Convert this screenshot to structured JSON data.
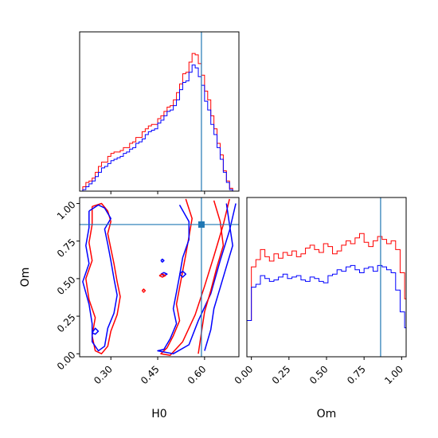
{
  "colors": {
    "series_a": "#ff0000",
    "series_b": "#0000ff",
    "truth": "#1f77b4",
    "frame": "#000000"
  },
  "chart_data": [
    {
      "type": "histogram",
      "panel": "H0 marginal",
      "x": [
        0.2,
        0.21,
        0.22,
        0.23,
        0.24,
        0.25,
        0.26,
        0.27,
        0.28,
        0.29,
        0.3,
        0.31,
        0.32,
        0.33,
        0.34,
        0.35,
        0.36,
        0.37,
        0.38,
        0.39,
        0.4,
        0.41,
        0.42,
        0.43,
        0.44,
        0.45,
        0.46,
        0.47,
        0.48,
        0.49,
        0.5,
        0.51,
        0.52,
        0.53,
        0.54,
        0.55,
        0.56,
        0.57,
        0.58,
        0.59,
        0.6,
        0.61,
        0.62,
        0.63,
        0.64,
        0.65,
        0.66,
        0.67,
        0.68,
        0.69,
        0.7,
        0.71
      ],
      "series": [
        {
          "values": [
            0,
            0.03,
            0.06,
            0.07,
            0.09,
            0.13,
            0.17,
            0.2,
            0.2,
            0.24,
            0.26,
            0.27,
            0.27,
            0.28,
            0.3,
            0.3,
            0.33,
            0.34,
            0.37,
            0.37,
            0.41,
            0.43,
            0.45,
            0.46,
            0.46,
            0.5,
            0.52,
            0.55,
            0.58,
            0.59,
            0.63,
            0.68,
            0.74,
            0.81,
            0.82,
            0.89,
            0.95,
            0.94,
            0.88,
            0.8,
            0.69,
            0.63,
            0.52,
            0.43,
            0.33,
            0.25,
            0.14,
            0.07,
            0.02,
            0,
            0,
            0
          ]
        },
        {
          "values": [
            0,
            0.01,
            0.03,
            0.05,
            0.07,
            0.1,
            0.13,
            0.16,
            0.17,
            0.19,
            0.21,
            0.22,
            0.23,
            0.24,
            0.26,
            0.27,
            0.29,
            0.3,
            0.33,
            0.34,
            0.36,
            0.39,
            0.41,
            0.42,
            0.43,
            0.47,
            0.49,
            0.52,
            0.55,
            0.56,
            0.59,
            0.63,
            0.7,
            0.75,
            0.76,
            0.82,
            0.87,
            0.85,
            0.79,
            0.73,
            0.62,
            0.56,
            0.46,
            0.39,
            0.3,
            0.22,
            0.13,
            0.06,
            0.01,
            0,
            0,
            0
          ]
        }
      ],
      "xlim": [
        0.2,
        0.71
      ],
      "ylim": [
        0,
        1
      ],
      "truth": 0.59
    },
    {
      "type": "histogram",
      "panel": "Om marginal",
      "x": [
        -0.03,
        0.0,
        0.03,
        0.06,
        0.09,
        0.12,
        0.15,
        0.18,
        0.21,
        0.24,
        0.27,
        0.3,
        0.33,
        0.36,
        0.39,
        0.42,
        0.45,
        0.48,
        0.51,
        0.54,
        0.57,
        0.6,
        0.63,
        0.66,
        0.69,
        0.72,
        0.75,
        0.78,
        0.81,
        0.84,
        0.87,
        0.9,
        0.93,
        0.96,
        0.99,
        1.02,
        1.05
      ],
      "series": [
        {
          "values": [
            0.25,
            0.62,
            0.67,
            0.74,
            0.69,
            0.66,
            0.71,
            0.68,
            0.72,
            0.7,
            0.73,
            0.69,
            0.71,
            0.75,
            0.77,
            0.74,
            0.72,
            0.78,
            0.76,
            0.71,
            0.73,
            0.77,
            0.8,
            0.78,
            0.82,
            0.85,
            0.79,
            0.76,
            0.8,
            0.83,
            0.81,
            0.78,
            0.8,
            0.74,
            0.58,
            0.4
          ]
        },
        {
          "values": [
            0.25,
            0.48,
            0.5,
            0.56,
            0.54,
            0.52,
            0.53,
            0.55,
            0.57,
            0.54,
            0.55,
            0.56,
            0.53,
            0.52,
            0.55,
            0.54,
            0.52,
            0.51,
            0.56,
            0.57,
            0.6,
            0.59,
            0.62,
            0.63,
            0.6,
            0.58,
            0.61,
            0.62,
            0.59,
            0.63,
            0.62,
            0.6,
            0.58,
            0.46,
            0.31,
            0.2
          ]
        }
      ],
      "xlim": [
        -0.03,
        1.03
      ],
      "ylim": [
        0,
        1
      ],
      "truth": 0.86
    },
    {
      "type": "contour",
      "panel": "H0 vs Om joint",
      "xlabel": "H0",
      "ylabel": "Om",
      "xlim": [
        0.2,
        0.71
      ],
      "ylim": [
        -0.02,
        1.04
      ],
      "xticks": [
        "0.30",
        "0.45",
        "0.60"
      ],
      "xtick_values": [
        0.3,
        0.45,
        0.6
      ],
      "yticks": [
        "0.00",
        "0.25",
        "0.50",
        "0.75",
        "1.00"
      ],
      "ytick_values": [
        0.0,
        0.25,
        0.5,
        0.75,
        1.0
      ],
      "truth": {
        "x": 0.59,
        "y": 0.86
      },
      "contours": [
        {
          "series": 0,
          "points": [
            [
              0.24,
              0.98
            ],
            [
              0.27,
              1.0
            ],
            [
              0.29,
              0.95
            ],
            [
              0.3,
              0.88
            ],
            [
              0.29,
              0.8
            ],
            [
              0.3,
              0.7
            ],
            [
              0.31,
              0.6
            ],
            [
              0.32,
              0.48
            ],
            [
              0.33,
              0.38
            ],
            [
              0.32,
              0.26
            ],
            [
              0.3,
              0.15
            ],
            [
              0.29,
              0.05
            ],
            [
              0.27,
              0.0
            ],
            [
              0.25,
              0.02
            ],
            [
              0.24,
              0.12
            ],
            [
              0.25,
              0.24
            ],
            [
              0.23,
              0.36
            ],
            [
              0.22,
              0.5
            ],
            [
              0.24,
              0.62
            ],
            [
              0.23,
              0.74
            ],
            [
              0.24,
              0.86
            ],
            [
              0.24,
              0.98
            ]
          ]
        },
        {
          "series": 1,
          "points": [
            [
              0.23,
              0.95
            ],
            [
              0.26,
              0.99
            ],
            [
              0.28,
              0.97
            ],
            [
              0.3,
              0.9
            ],
            [
              0.28,
              0.83
            ],
            [
              0.29,
              0.73
            ],
            [
              0.3,
              0.62
            ],
            [
              0.31,
              0.5
            ],
            [
              0.32,
              0.39
            ],
            [
              0.31,
              0.27
            ],
            [
              0.29,
              0.17
            ],
            [
              0.28,
              0.05
            ],
            [
              0.26,
              0.02
            ],
            [
              0.24,
              0.08
            ],
            [
              0.24,
              0.2
            ],
            [
              0.23,
              0.33
            ],
            [
              0.21,
              0.48
            ],
            [
              0.23,
              0.6
            ],
            [
              0.22,
              0.72
            ],
            [
              0.23,
              0.84
            ],
            [
              0.23,
              0.95
            ]
          ]
        },
        {
          "series": 0,
          "points": [
            [
              0.54,
              1.03
            ],
            [
              0.56,
              0.9
            ],
            [
              0.55,
              0.78
            ],
            [
              0.54,
              0.66
            ],
            [
              0.53,
              0.55
            ],
            [
              0.52,
              0.44
            ],
            [
              0.51,
              0.33
            ],
            [
              0.52,
              0.22
            ],
            [
              0.5,
              0.12
            ],
            [
              0.48,
              0.04
            ],
            [
              0.46,
              0.0
            ],
            [
              0.49,
              -0.01
            ],
            [
              0.53,
              0.08
            ],
            [
              0.57,
              0.26
            ],
            [
              0.6,
              0.45
            ],
            [
              0.63,
              0.65
            ],
            [
              0.66,
              0.86
            ],
            [
              0.68,
              1.03
            ]
          ]
        },
        {
          "series": 1,
          "points": [
            [
              0.52,
              0.99
            ],
            [
              0.55,
              0.88
            ],
            [
              0.55,
              0.76
            ],
            [
              0.53,
              0.64
            ],
            [
              0.52,
              0.52
            ],
            [
              0.51,
              0.41
            ],
            [
              0.5,
              0.3
            ],
            [
              0.51,
              0.2
            ],
            [
              0.49,
              0.1
            ],
            [
              0.47,
              0.03
            ],
            [
              0.45,
              0.02
            ],
            [
              0.5,
              0.0
            ],
            [
              0.55,
              0.06
            ],
            [
              0.58,
              0.22
            ],
            [
              0.62,
              0.4
            ],
            [
              0.65,
              0.62
            ],
            [
              0.68,
              0.82
            ],
            [
              0.7,
              1.0
            ]
          ]
        },
        {
          "series": 0,
          "points": [
            [
              0.63,
              1.02
            ],
            [
              0.65,
              0.88
            ],
            [
              0.66,
              0.72
            ],
            [
              0.64,
              0.58
            ],
            [
              0.62,
              0.42
            ],
            [
              0.6,
              0.28
            ],
            [
              0.59,
              0.14
            ],
            [
              0.58,
              0.0
            ]
          ]
        },
        {
          "series": 1,
          "points": [
            [
              0.67,
              1.0
            ],
            [
              0.68,
              0.86
            ],
            [
              0.69,
              0.72
            ],
            [
              0.67,
              0.58
            ],
            [
              0.65,
              0.44
            ],
            [
              0.63,
              0.3
            ],
            [
              0.62,
              0.16
            ],
            [
              0.6,
              0.02
            ]
          ]
        },
        {
          "series": 1,
          "points": [
            [
              0.24,
              0.14
            ],
            [
              0.25,
              0.17
            ],
            [
              0.26,
              0.15
            ],
            [
              0.25,
              0.13
            ],
            [
              0.24,
              0.14
            ]
          ]
        },
        {
          "series": 1,
          "points": [
            [
              0.46,
              0.53
            ],
            [
              0.47,
              0.54
            ],
            [
              0.48,
              0.53
            ],
            [
              0.47,
              0.52
            ],
            [
              0.46,
              0.53
            ]
          ]
        },
        {
          "series": 0,
          "points": [
            [
              0.455,
              0.52
            ],
            [
              0.465,
              0.53
            ],
            [
              0.475,
              0.52
            ],
            [
              0.465,
              0.51
            ],
            [
              0.455,
              0.52
            ]
          ]
        },
        {
          "series": 1,
          "points": [
            [
              0.52,
              0.53
            ],
            [
              0.53,
              0.55
            ],
            [
              0.54,
              0.53
            ],
            [
              0.53,
              0.51
            ],
            [
              0.52,
              0.53
            ]
          ]
        },
        {
          "series": 1,
          "points": [
            [
              0.46,
              0.62
            ],
            [
              0.465,
              0.63
            ],
            [
              0.47,
              0.62
            ],
            [
              0.465,
              0.61
            ],
            [
              0.46,
              0.62
            ]
          ]
        },
        {
          "series": 0,
          "points": [
            [
              0.4,
              0.42
            ],
            [
              0.405,
              0.43
            ],
            [
              0.41,
              0.42
            ],
            [
              0.405,
              0.41
            ],
            [
              0.4,
              0.42
            ]
          ]
        }
      ]
    },
    {
      "type": "axis",
      "panel": "Om marginal axis",
      "xlabel": "Om",
      "xticks": [
        "0.00",
        "0.25",
        "0.50",
        "0.75",
        "1.00"
      ],
      "xtick_values": [
        0.0,
        0.25,
        0.5,
        0.75,
        1.0
      ]
    }
  ]
}
